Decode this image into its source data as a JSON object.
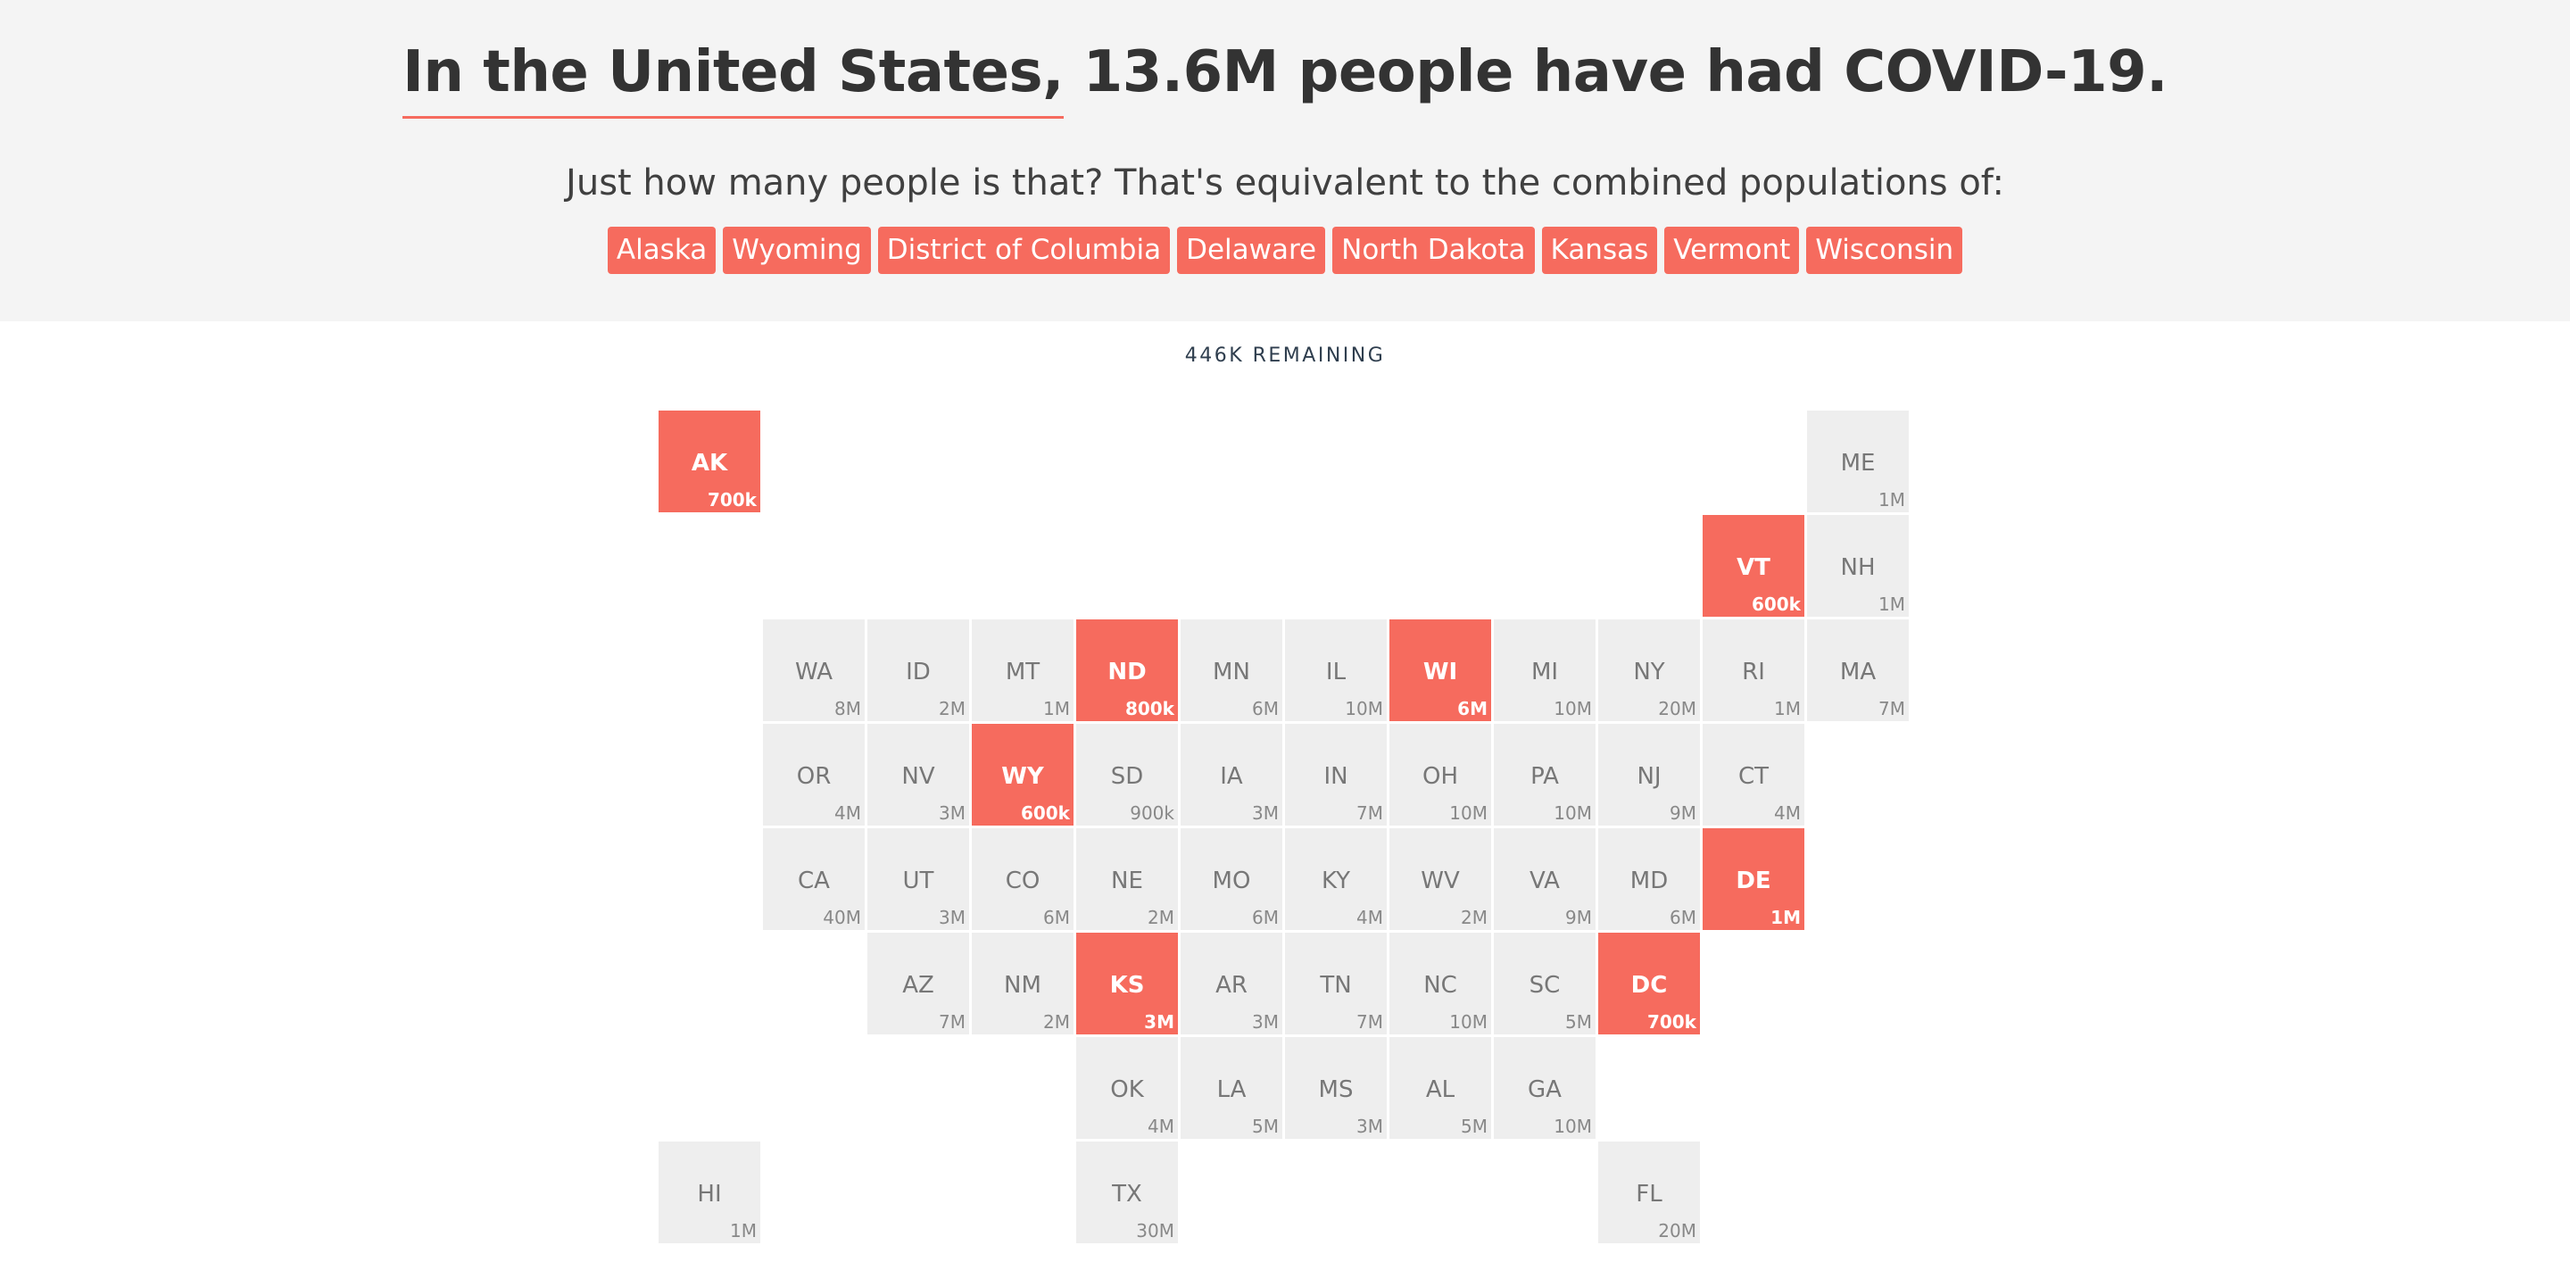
{
  "header": {
    "headline_underlined": "In the United States,",
    "headline_rest": " 13.6M people have had COVID-19.",
    "subtitle": "Just how many people is that? That's equivalent to the combined populations of:",
    "chips": [
      "Alaska",
      "Wyoming",
      "District of Columbia",
      "Delaware",
      "North Dakota",
      "Kansas",
      "Vermont",
      "Wisconsin"
    ]
  },
  "remaining_label": "446K REMAINING",
  "colors": {
    "accent": "#f66b5e",
    "tile": "#eeeeee",
    "header_bg": "#f4f4f4"
  },
  "states": [
    {
      "abbr": "AK",
      "pop": "700k",
      "row": 0,
      "col": 0,
      "selected": true
    },
    {
      "abbr": "ME",
      "pop": "1M",
      "row": 0,
      "col": 11,
      "selected": false
    },
    {
      "abbr": "VT",
      "pop": "600k",
      "row": 1,
      "col": 10,
      "selected": true
    },
    {
      "abbr": "NH",
      "pop": "1M",
      "row": 1,
      "col": 11,
      "selected": false
    },
    {
      "abbr": "WA",
      "pop": "8M",
      "row": 2,
      "col": 1,
      "selected": false
    },
    {
      "abbr": "ID",
      "pop": "2M",
      "row": 2,
      "col": 2,
      "selected": false
    },
    {
      "abbr": "MT",
      "pop": "1M",
      "row": 2,
      "col": 3,
      "selected": false
    },
    {
      "abbr": "ND",
      "pop": "800k",
      "row": 2,
      "col": 4,
      "selected": true
    },
    {
      "abbr": "MN",
      "pop": "6M",
      "row": 2,
      "col": 5,
      "selected": false
    },
    {
      "abbr": "IL",
      "pop": "10M",
      "row": 2,
      "col": 6,
      "selected": false
    },
    {
      "abbr": "WI",
      "pop": "6M",
      "row": 2,
      "col": 7,
      "selected": true
    },
    {
      "abbr": "MI",
      "pop": "10M",
      "row": 2,
      "col": 8,
      "selected": false
    },
    {
      "abbr": "NY",
      "pop": "20M",
      "row": 2,
      "col": 9,
      "selected": false
    },
    {
      "abbr": "RI",
      "pop": "1M",
      "row": 2,
      "col": 10,
      "selected": false
    },
    {
      "abbr": "MA",
      "pop": "7M",
      "row": 2,
      "col": 11,
      "selected": false
    },
    {
      "abbr": "OR",
      "pop": "4M",
      "row": 3,
      "col": 1,
      "selected": false
    },
    {
      "abbr": "NV",
      "pop": "3M",
      "row": 3,
      "col": 2,
      "selected": false
    },
    {
      "abbr": "WY",
      "pop": "600k",
      "row": 3,
      "col": 3,
      "selected": true
    },
    {
      "abbr": "SD",
      "pop": "900k",
      "row": 3,
      "col": 4,
      "selected": false
    },
    {
      "abbr": "IA",
      "pop": "3M",
      "row": 3,
      "col": 5,
      "selected": false
    },
    {
      "abbr": "IN",
      "pop": "7M",
      "row": 3,
      "col": 6,
      "selected": false
    },
    {
      "abbr": "OH",
      "pop": "10M",
      "row": 3,
      "col": 7,
      "selected": false
    },
    {
      "abbr": "PA",
      "pop": "10M",
      "row": 3,
      "col": 8,
      "selected": false
    },
    {
      "abbr": "NJ",
      "pop": "9M",
      "row": 3,
      "col": 9,
      "selected": false
    },
    {
      "abbr": "CT",
      "pop": "4M",
      "row": 3,
      "col": 10,
      "selected": false
    },
    {
      "abbr": "CA",
      "pop": "40M",
      "row": 4,
      "col": 1,
      "selected": false
    },
    {
      "abbr": "UT",
      "pop": "3M",
      "row": 4,
      "col": 2,
      "selected": false
    },
    {
      "abbr": "CO",
      "pop": "6M",
      "row": 4,
      "col": 3,
      "selected": false
    },
    {
      "abbr": "NE",
      "pop": "2M",
      "row": 4,
      "col": 4,
      "selected": false
    },
    {
      "abbr": "MO",
      "pop": "6M",
      "row": 4,
      "col": 5,
      "selected": false
    },
    {
      "abbr": "KY",
      "pop": "4M",
      "row": 4,
      "col": 6,
      "selected": false
    },
    {
      "abbr": "WV",
      "pop": "2M",
      "row": 4,
      "col": 7,
      "selected": false
    },
    {
      "abbr": "VA",
      "pop": "9M",
      "row": 4,
      "col": 8,
      "selected": false
    },
    {
      "abbr": "MD",
      "pop": "6M",
      "row": 4,
      "col": 9,
      "selected": false
    },
    {
      "abbr": "DE",
      "pop": "1M",
      "row": 4,
      "col": 10,
      "selected": true
    },
    {
      "abbr": "AZ",
      "pop": "7M",
      "row": 5,
      "col": 2,
      "selected": false
    },
    {
      "abbr": "NM",
      "pop": "2M",
      "row": 5,
      "col": 3,
      "selected": false
    },
    {
      "abbr": "KS",
      "pop": "3M",
      "row": 5,
      "col": 4,
      "selected": true
    },
    {
      "abbr": "AR",
      "pop": "3M",
      "row": 5,
      "col": 5,
      "selected": false
    },
    {
      "abbr": "TN",
      "pop": "7M",
      "row": 5,
      "col": 6,
      "selected": false
    },
    {
      "abbr": "NC",
      "pop": "10M",
      "row": 5,
      "col": 7,
      "selected": false
    },
    {
      "abbr": "SC",
      "pop": "5M",
      "row": 5,
      "col": 8,
      "selected": false
    },
    {
      "abbr": "DC",
      "pop": "700k",
      "row": 5,
      "col": 9,
      "selected": true
    },
    {
      "abbr": "OK",
      "pop": "4M",
      "row": 6,
      "col": 4,
      "selected": false
    },
    {
      "abbr": "LA",
      "pop": "5M",
      "row": 6,
      "col": 5,
      "selected": false
    },
    {
      "abbr": "MS",
      "pop": "3M",
      "row": 6,
      "col": 6,
      "selected": false
    },
    {
      "abbr": "AL",
      "pop": "5M",
      "row": 6,
      "col": 7,
      "selected": false
    },
    {
      "abbr": "GA",
      "pop": "10M",
      "row": 6,
      "col": 8,
      "selected": false
    },
    {
      "abbr": "HI",
      "pop": "1M",
      "row": 7,
      "col": 0,
      "selected": false
    },
    {
      "abbr": "TX",
      "pop": "30M",
      "row": 7,
      "col": 4,
      "selected": false
    },
    {
      "abbr": "FL",
      "pop": "20M",
      "row": 7,
      "col": 9,
      "selected": false
    }
  ]
}
